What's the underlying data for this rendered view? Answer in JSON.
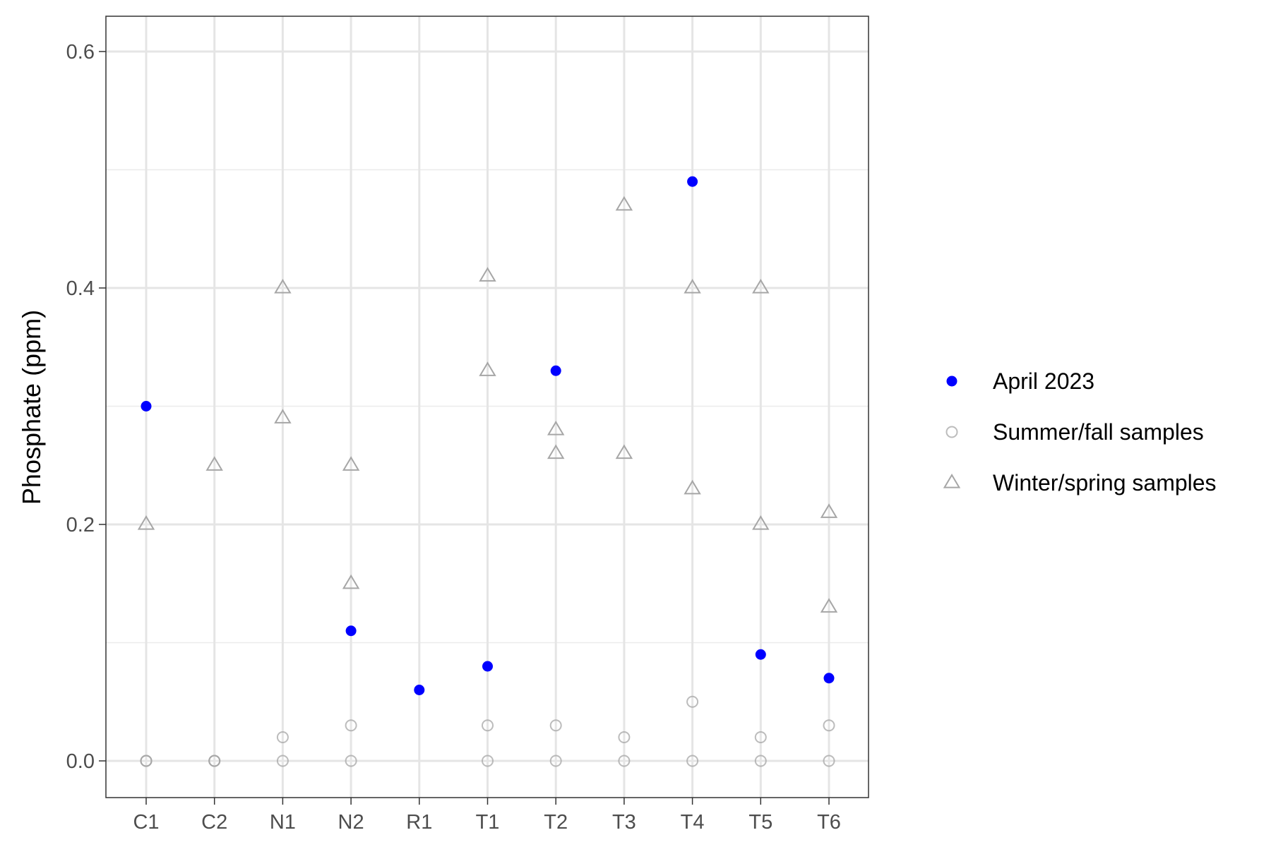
{
  "chart_data": {
    "type": "scatter",
    "title": "",
    "xlabel": "",
    "ylabel": "Phosphate (ppm)",
    "categories": [
      "C1",
      "C2",
      "N1",
      "N2",
      "R1",
      "T1",
      "T2",
      "T3",
      "T4",
      "T5",
      "T6"
    ],
    "ylim": [
      -0.029,
      0.63
    ],
    "yticks": [
      0.0,
      0.2,
      0.4,
      0.6
    ],
    "yticklabels": [
      "0.0",
      "0.2",
      "0.4",
      "0.6"
    ],
    "grid": true,
    "legend_position": "right",
    "series": [
      {
        "name": "April 2023",
        "marker": "filled-circle",
        "color": "#0000ff",
        "points": [
          {
            "x": "C1",
            "y": 0.3
          },
          {
            "x": "N2",
            "y": 0.11
          },
          {
            "x": "R1",
            "y": 0.06
          },
          {
            "x": "T1",
            "y": 0.08
          },
          {
            "x": "T2",
            "y": 0.33
          },
          {
            "x": "T4",
            "y": 0.49
          },
          {
            "x": "T5",
            "y": 0.09
          },
          {
            "x": "T6",
            "y": 0.07
          }
        ]
      },
      {
        "name": "Summer/fall samples",
        "marker": "open-circle",
        "color": "#a6a6a6",
        "points": [
          {
            "x": "C1",
            "y": 0.0
          },
          {
            "x": "C1",
            "y": 0.0
          },
          {
            "x": "C1",
            "y": 0.0
          },
          {
            "x": "C2",
            "y": 0.0
          },
          {
            "x": "C2",
            "y": 0.0
          },
          {
            "x": "C2",
            "y": 0.0
          },
          {
            "x": "N1",
            "y": 0.0
          },
          {
            "x": "N1",
            "y": 0.02
          },
          {
            "x": "N2",
            "y": 0.0
          },
          {
            "x": "N2",
            "y": 0.03
          },
          {
            "x": "T1",
            "y": 0.0
          },
          {
            "x": "T1",
            "y": 0.03
          },
          {
            "x": "T2",
            "y": 0.0
          },
          {
            "x": "T2",
            "y": 0.03
          },
          {
            "x": "T3",
            "y": 0.0
          },
          {
            "x": "T3",
            "y": 0.02
          },
          {
            "x": "T4",
            "y": 0.0
          },
          {
            "x": "T4",
            "y": 0.05
          },
          {
            "x": "T5",
            "y": 0.0
          },
          {
            "x": "T5",
            "y": 0.02
          },
          {
            "x": "T6",
            "y": 0.0
          },
          {
            "x": "T6",
            "y": 0.03
          }
        ]
      },
      {
        "name": "Winter/spring samples",
        "marker": "open-triangle",
        "color": "#a6a6a6",
        "points": [
          {
            "x": "C1",
            "y": 0.2
          },
          {
            "x": "C2",
            "y": 0.25
          },
          {
            "x": "N1",
            "y": 0.4
          },
          {
            "x": "N1",
            "y": 0.29
          },
          {
            "x": "N2",
            "y": 0.25
          },
          {
            "x": "N2",
            "y": 0.15
          },
          {
            "x": "T1",
            "y": 0.41
          },
          {
            "x": "T1",
            "y": 0.33
          },
          {
            "x": "T2",
            "y": 0.28
          },
          {
            "x": "T2",
            "y": 0.26
          },
          {
            "x": "T3",
            "y": 0.47
          },
          {
            "x": "T3",
            "y": 0.26
          },
          {
            "x": "T4",
            "y": 0.4
          },
          {
            "x": "T4",
            "y": 0.23
          },
          {
            "x": "T5",
            "y": 0.4
          },
          {
            "x": "T5",
            "y": 0.2
          },
          {
            "x": "T6",
            "y": 0.21
          },
          {
            "x": "T6",
            "y": 0.13
          }
        ]
      }
    ]
  }
}
